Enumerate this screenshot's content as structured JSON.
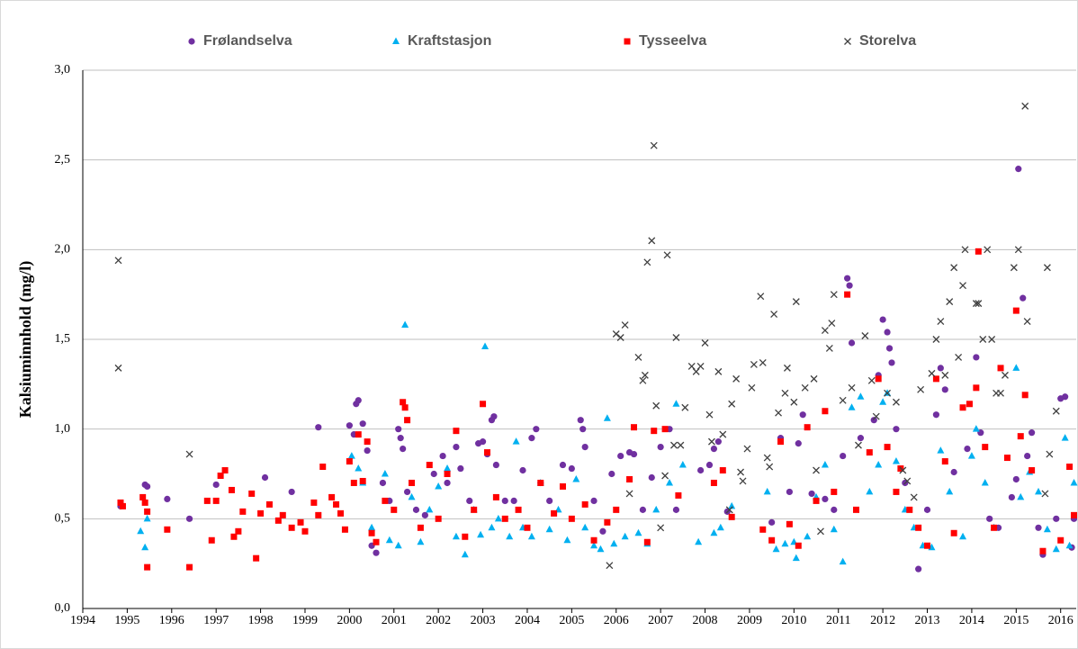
{
  "chart_data": {
    "type": "scatter",
    "ylabel": "Kalsiuminnhold (mg/l)",
    "xlim": [
      1994,
      2016.35
    ],
    "xticks": [
      1994,
      1995,
      1996,
      1997,
      1998,
      1999,
      2000,
      2001,
      2002,
      2003,
      2004,
      2005,
      2006,
      2007,
      2008,
      2009,
      2010,
      2011,
      2012,
      2013,
      2014,
      2015,
      2016
    ],
    "ylim": [
      0,
      3
    ],
    "yticks": [
      {
        "value": 0,
        "label": "0,0"
      },
      {
        "value": 0.5,
        "label": "0,5"
      },
      {
        "value": 1,
        "label": "1,0"
      },
      {
        "value": 1.5,
        "label": "1,5"
      },
      {
        "value": 2,
        "label": "2,0"
      },
      {
        "value": 2.5,
        "label": "2,5"
      },
      {
        "value": 3,
        "label": "3,0"
      }
    ],
    "grid": true,
    "legend": "top",
    "series": [
      {
        "name": "Frølandselva",
        "color": "#7030a0",
        "marker": "circle",
        "x": [
          1994.85,
          1995.4,
          1995.45,
          1995.9,
          1996.4,
          1997.0,
          1998.1,
          1998.7,
          1999.3,
          2000.0,
          2000.1,
          2000.15,
          2000.2,
          2000.3,
          2000.4,
          2000.5,
          2000.6,
          2000.75,
          2000.9,
          2001.1,
          2001.15,
          2001.2,
          2001.3,
          2001.5,
          2001.7,
          2001.9,
          2002.1,
          2002.2,
          2002.4,
          2002.5,
          2002.7,
          2002.9,
          2003.0,
          2003.1,
          2003.2,
          2003.25,
          2003.3,
          2003.5,
          2003.7,
          2003.9,
          2004.1,
          2004.2,
          2004.3,
          2004.5,
          2004.8,
          2005.0,
          2005.2,
          2005.25,
          2005.3,
          2005.5,
          2005.7,
          2005.9,
          2006.1,
          2006.3,
          2006.4,
          2006.6,
          2006.8,
          2007.0,
          2007.2,
          2007.35,
          2007.9,
          2008.1,
          2008.2,
          2008.3,
          2008.5,
          2009.5,
          2009.7,
          2009.9,
          2010.1,
          2010.2,
          2010.4,
          2010.7,
          2010.9,
          2011.1,
          2011.2,
          2011.25,
          2011.3,
          2011.5,
          2011.8,
          2011.9,
          2012.0,
          2012.1,
          2012.15,
          2012.2,
          2012.3,
          2012.5,
          2012.8,
          2013.0,
          2013.2,
          2013.3,
          2013.4,
          2013.6,
          2013.9,
          2014.1,
          2014.2,
          2014.4,
          2014.6,
          2014.9,
          2015.0,
          2015.05,
          2015.15,
          2015.25,
          2015.35,
          2015.5,
          2015.6,
          2015.9,
          2016.0,
          2016.1,
          2016.25,
          2016.3
        ],
        "values": [
          0.57,
          0.69,
          0.68,
          0.61,
          0.5,
          0.69,
          0.73,
          0.65,
          1.01,
          1.02,
          0.97,
          1.14,
          1.16,
          1.03,
          0.88,
          0.35,
          0.31,
          0.7,
          0.6,
          1.0,
          0.95,
          0.89,
          0.65,
          0.55,
          0.52,
          0.75,
          0.85,
          0.7,
          0.9,
          0.78,
          0.6,
          0.92,
          0.93,
          0.86,
          1.05,
          1.07,
          0.8,
          0.6,
          0.6,
          0.77,
          0.95,
          1.0,
          0.7,
          0.6,
          0.8,
          0.78,
          1.05,
          1.0,
          0.9,
          0.6,
          0.43,
          0.75,
          0.85,
          0.87,
          0.86,
          0.55,
          0.73,
          0.9,
          1.0,
          0.55,
          0.77,
          0.8,
          0.89,
          0.93,
          0.54,
          0.48,
          0.95,
          0.65,
          0.92,
          1.08,
          0.64,
          0.61,
          0.55,
          0.85,
          1.84,
          1.8,
          1.48,
          0.95,
          1.05,
          1.3,
          1.61,
          1.54,
          1.45,
          1.37,
          1.0,
          0.7,
          0.22,
          0.55,
          1.08,
          1.34,
          1.22,
          0.76,
          0.89,
          1.4,
          0.98,
          0.5,
          0.45,
          0.62,
          0.72,
          2.45,
          1.73,
          0.85,
          0.98,
          0.45,
          0.3,
          0.5,
          1.17,
          1.18,
          0.34,
          0.5
        ]
      },
      {
        "name": "Kraftstasjon",
        "color": "#00b0f0",
        "marker": "triangle",
        "x": [
          1995.3,
          1995.4,
          1995.45,
          2000.05,
          2000.2,
          2000.3,
          2000.5,
          2000.8,
          2000.9,
          2001.1,
          2001.25,
          2001.4,
          2001.6,
          2001.8,
          2002.0,
          2002.2,
          2002.4,
          2002.6,
          2002.8,
          2002.95,
          2003.05,
          2003.2,
          2003.35,
          2003.6,
          2003.75,
          2003.9,
          2004.1,
          2004.3,
          2004.5,
          2004.7,
          2004.9,
          2005.1,
          2005.3,
          2005.5,
          2005.65,
          2005.8,
          2005.95,
          2006.2,
          2006.5,
          2006.7,
          2006.9,
          2007.2,
          2007.35,
          2007.5,
          2007.85,
          2008.2,
          2008.35,
          2008.6,
          2009.4,
          2009.6,
          2009.8,
          2010.0,
          2010.05,
          2010.3,
          2010.5,
          2010.7,
          2010.9,
          2011.1,
          2011.3,
          2011.5,
          2011.7,
          2011.9,
          2012.0,
          2012.1,
          2012.3,
          2012.5,
          2012.7,
          2012.9,
          2013.1,
          2013.3,
          2013.5,
          2013.8,
          2014.0,
          2014.1,
          2014.3,
          2014.5,
          2015.0,
          2015.1,
          2015.3,
          2015.5,
          2015.7,
          2015.9,
          2016.1,
          2016.2,
          2016.3
        ],
        "values": [
          0.43,
          0.34,
          0.5,
          0.85,
          0.78,
          0.7,
          0.45,
          0.75,
          0.38,
          0.35,
          1.58,
          0.62,
          0.37,
          0.55,
          0.68,
          0.78,
          0.4,
          0.3,
          0.55,
          0.41,
          1.46,
          0.45,
          0.5,
          0.4,
          0.93,
          0.45,
          0.4,
          0.7,
          0.44,
          0.55,
          0.38,
          0.72,
          0.45,
          0.35,
          0.33,
          1.06,
          0.36,
          0.4,
          0.42,
          0.36,
          0.55,
          0.7,
          1.14,
          0.8,
          0.37,
          0.42,
          0.45,
          0.57,
          0.65,
          0.33,
          0.36,
          0.37,
          0.28,
          0.4,
          0.62,
          0.8,
          0.44,
          0.26,
          1.12,
          1.18,
          0.65,
          0.8,
          1.15,
          1.2,
          0.82,
          0.55,
          0.45,
          0.35,
          0.34,
          0.88,
          0.65,
          0.4,
          0.85,
          1.0,
          0.7,
          0.45,
          1.34,
          0.62,
          0.76,
          0.65,
          0.44,
          0.33,
          0.95,
          0.35,
          0.7
        ]
      },
      {
        "name": "Tysseelva",
        "color": "#ff0000",
        "marker": "square",
        "x": [
          1994.85,
          1994.9,
          1995.35,
          1995.4,
          1995.45,
          1995.45,
          1995.9,
          1996.4,
          1996.8,
          1996.9,
          1997.0,
          1997.1,
          1997.2,
          1997.35,
          1997.4,
          1997.5,
          1997.6,
          1997.8,
          1997.9,
          1998.0,
          1998.2,
          1998.4,
          1998.5,
          1998.7,
          1998.9,
          1999.0,
          1999.2,
          1999.3,
          1999.4,
          1999.6,
          1999.7,
          1999.8,
          1999.9,
          2000.0,
          2000.1,
          2000.2,
          2000.3,
          2000.4,
          2000.5,
          2000.6,
          2000.8,
          2001.0,
          2001.2,
          2001.25,
          2001.3,
          2001.4,
          2001.6,
          2001.8,
          2002.0,
          2002.2,
          2002.4,
          2002.6,
          2002.8,
          2003.0,
          2003.1,
          2003.3,
          2003.5,
          2003.8,
          2004.0,
          2004.3,
          2004.6,
          2004.8,
          2005.0,
          2005.3,
          2005.5,
          2005.8,
          2006.0,
          2006.3,
          2006.4,
          2006.7,
          2006.85,
          2007.1,
          2007.4,
          2008.2,
          2008.4,
          2008.6,
          2009.3,
          2009.5,
          2009.7,
          2009.9,
          2010.1,
          2010.3,
          2010.5,
          2010.7,
          2010.9,
          2011.2,
          2011.4,
          2011.7,
          2011.9,
          2012.1,
          2012.3,
          2012.4,
          2012.6,
          2012.8,
          2013.0,
          2013.2,
          2013.4,
          2013.6,
          2013.8,
          2013.95,
          2014.1,
          2014.15,
          2014.3,
          2014.5,
          2014.65,
          2014.8,
          2015.0,
          2015.1,
          2015.2,
          2015.35,
          2015.6,
          2016.0,
          2016.2,
          2016.3
        ],
        "values": [
          0.59,
          0.57,
          0.62,
          0.59,
          0.54,
          0.23,
          0.44,
          0.23,
          0.6,
          0.38,
          0.6,
          0.74,
          0.77,
          0.66,
          0.4,
          0.43,
          0.54,
          0.64,
          0.28,
          0.53,
          0.58,
          0.49,
          0.52,
          0.45,
          0.48,
          0.43,
          0.59,
          0.52,
          0.79,
          0.62,
          0.58,
          0.53,
          0.44,
          0.82,
          0.7,
          0.97,
          0.71,
          0.93,
          0.42,
          0.37,
          0.6,
          0.55,
          1.15,
          1.12,
          1.05,
          0.7,
          0.45,
          0.8,
          0.5,
          0.75,
          0.99,
          0.4,
          0.55,
          1.14,
          0.87,
          0.62,
          0.5,
          0.55,
          0.45,
          0.7,
          0.53,
          0.68,
          0.5,
          0.58,
          0.38,
          0.48,
          0.55,
          0.72,
          1.01,
          0.37,
          0.99,
          1.0,
          0.63,
          0.7,
          0.77,
          0.51,
          0.44,
          0.38,
          0.93,
          0.47,
          0.35,
          1.01,
          0.6,
          1.1,
          0.65,
          1.75,
          0.55,
          0.87,
          1.28,
          0.9,
          0.65,
          0.78,
          0.55,
          0.45,
          0.35,
          1.28,
          0.82,
          0.42,
          1.12,
          1.14,
          1.23,
          1.99,
          0.9,
          0.45,
          1.34,
          0.84,
          1.66,
          0.96,
          1.19,
          0.77,
          0.32,
          0.38,
          0.79,
          0.52
        ]
      },
      {
        "name": "Storelva",
        "color": "#404040",
        "marker": "x",
        "x": [
          1994.8,
          1994.8,
          1996.4,
          2006.0,
          2006.1,
          2006.2,
          2006.3,
          2006.5,
          2006.6,
          2006.65,
          2006.7,
          2006.8,
          2006.85,
          2006.9,
          2007.0,
          2007.1,
          2007.15,
          2007.3,
          2007.35,
          2007.45,
          2007.55,
          2007.7,
          2007.8,
          2007.9,
          2008.0,
          2008.1,
          2008.15,
          2008.3,
          2008.4,
          2008.55,
          2008.6,
          2008.7,
          2008.8,
          2008.85,
          2008.95,
          2009.05,
          2009.1,
          2009.25,
          2009.3,
          2009.4,
          2009.45,
          2009.55,
          2009.65,
          2009.8,
          2009.85,
          2010.0,
          2010.05,
          2010.25,
          2010.45,
          2010.5,
          2010.6,
          2010.7,
          2010.8,
          2010.85,
          2010.9,
          2011.1,
          2011.3,
          2011.45,
          2011.6,
          2011.75,
          2011.85,
          2012.1,
          2012.3,
          2012.45,
          2012.55,
          2012.7,
          2012.85,
          2013.1,
          2013.2,
          2013.3,
          2013.4,
          2013.5,
          2013.6,
          2013.7,
          2013.8,
          2013.85,
          2014.1,
          2014.15,
          2014.25,
          2014.35,
          2014.45,
          2014.55,
          2014.65,
          2014.75,
          2014.95,
          2015.05,
          2015.2,
          2015.25,
          2015.65,
          2015.7,
          2015.75,
          2015.9,
          2005.85
        ],
        "values": [
          1.94,
          1.34,
          0.86,
          1.53,
          1.51,
          1.58,
          0.64,
          1.4,
          1.27,
          1.3,
          1.93,
          2.05,
          2.58,
          1.13,
          0.45,
          0.74,
          1.97,
          0.91,
          1.51,
          0.91,
          1.12,
          1.35,
          1.32,
          1.35,
          1.48,
          1.08,
          0.93,
          1.32,
          0.97,
          0.55,
          1.14,
          1.28,
          0.76,
          0.71,
          0.89,
          1.23,
          1.36,
          1.74,
          1.37,
          0.84,
          0.79,
          1.64,
          1.09,
          1.2,
          1.34,
          1.15,
          1.71,
          1.23,
          1.28,
          0.77,
          0.43,
          1.55,
          1.45,
          1.59,
          1.75,
          1.16,
          1.23,
          0.91,
          1.52,
          1.27,
          1.07,
          1.2,
          1.15,
          0.77,
          0.71,
          0.62,
          1.22,
          1.31,
          1.5,
          1.6,
          1.3,
          1.71,
          1.9,
          1.4,
          1.8,
          2.0,
          1.7,
          1.7,
          1.5,
          2.0,
          1.5,
          1.2,
          1.2,
          1.3,
          1.9,
          2.0,
          2.8,
          1.6,
          0.64,
          1.9,
          0.86,
          1.1,
          0.24
        ]
      }
    ]
  }
}
